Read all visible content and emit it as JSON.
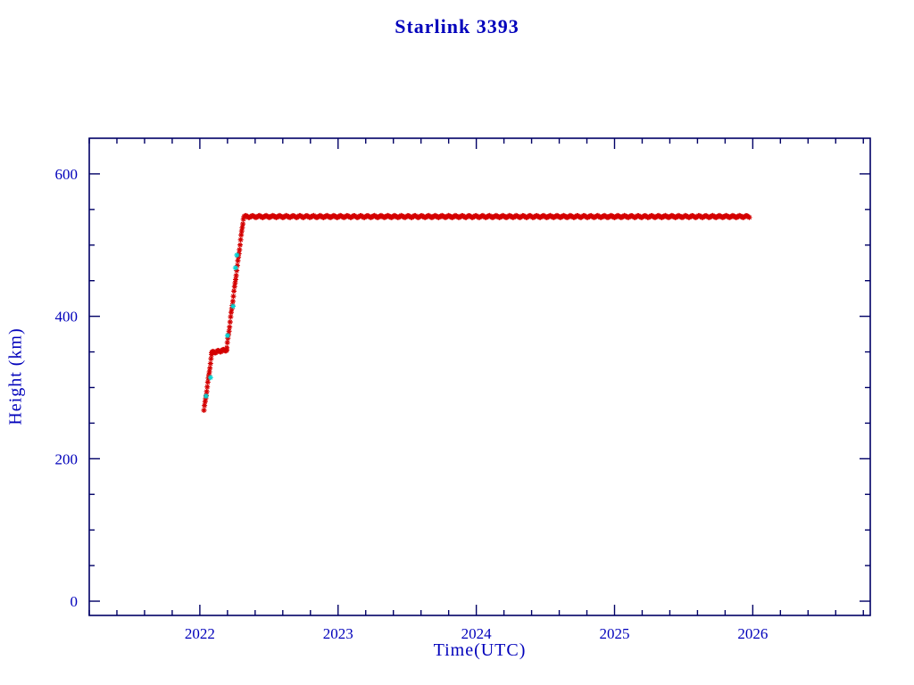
{
  "colors": {
    "text": "#0000bb",
    "axis": "#000066",
    "series_red": "#d40000",
    "series_cyan": "#00d5d5"
  },
  "chart_data": {
    "type": "scatter",
    "title": "Starlink 3393",
    "xlabel": "Time(UTC)",
    "ylabel": "Height (km)",
    "xlim": [
      2021.2,
      2026.85
    ],
    "ylim": [
      -20,
      650
    ],
    "x_major_ticks": [
      2022,
      2023,
      2024,
      2025,
      2026
    ],
    "x_major_tick_labels": [
      "2022",
      "2023",
      "2024",
      "2025",
      "2026"
    ],
    "x_minor_step": 0.2,
    "y_major_ticks": [
      0,
      200,
      400,
      600
    ],
    "y_major_tick_labels": [
      "0",
      "200",
      "400",
      "600"
    ],
    "y_minor_step": 50,
    "grid": false,
    "legend": false,
    "marker": "asterisk",
    "series": [
      {
        "name": "height-red",
        "color": "#d40000",
        "segments": [
          {
            "x0": 2022.03,
            "y0": 268,
            "x1": 2022.085,
            "y1": 345,
            "step": 0.004
          },
          {
            "x0": 2022.085,
            "y0": 349,
            "x1": 2022.195,
            "y1": 353,
            "step": 0.006
          },
          {
            "x0": 2022.195,
            "y0": 356,
            "x1": 2022.315,
            "y1": 537,
            "step": 0.004
          },
          {
            "x0": 2022.32,
            "y0": 540,
            "x1": 2025.975,
            "y1": 540,
            "step": 0.008
          }
        ]
      },
      {
        "name": "height-cyan",
        "color": "#00d5d5",
        "points": [
          [
            2022.045,
            288
          ],
          [
            2022.077,
            314
          ],
          [
            2022.2,
            373
          ],
          [
            2022.24,
            414
          ],
          [
            2022.258,
            468
          ],
          [
            2022.268,
            486
          ]
        ]
      }
    ]
  }
}
